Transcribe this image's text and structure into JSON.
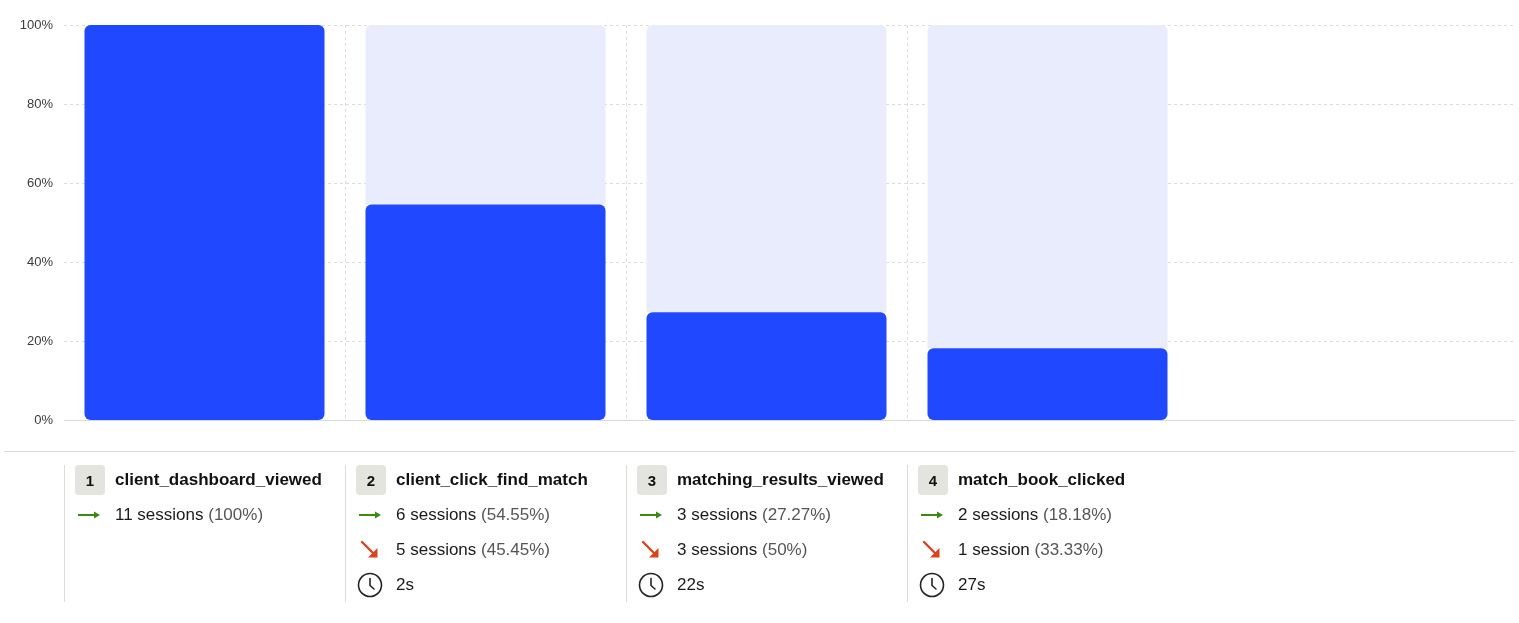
{
  "chart_data": {
    "type": "bar",
    "categories": [
      "client_dashboard_viewed",
      "client_click_find_match",
      "matching_results_viewed",
      "match_book_clicked"
    ],
    "stacked": true,
    "series": [
      {
        "color": "#1f48ff",
        "values": [
          100,
          54.55,
          27.27,
          18.18
        ],
        "value_labels": [
          "11 sessions (100%)",
          "6 sessions (54.55%)",
          "3 sessions (27.27%)",
          "2 sessions (18.18%)"
        ]
      },
      {
        "color": "#e9ecfd",
        "values": [
          0,
          45.45,
          72.73,
          81.82
        ]
      }
    ],
    "ylim": [
      0,
      100
    ],
    "yticks": [
      {
        "value": 0,
        "label": "0%"
      },
      {
        "value": 20,
        "label": "20%"
      },
      {
        "value": 40,
        "label": "40%"
      },
      {
        "value": 60,
        "label": "60%"
      },
      {
        "value": 80,
        "label": "80%"
      },
      {
        "value": 100,
        "label": "100%"
      }
    ],
    "grid": true,
    "legend": false,
    "annotations": [
      "1",
      "2",
      "3",
      "4",
      "5 sessions (45.45%)",
      "2s",
      "3 sessions (50%)",
      "22s",
      "1 session (33.33%)",
      "27s"
    ]
  }
}
